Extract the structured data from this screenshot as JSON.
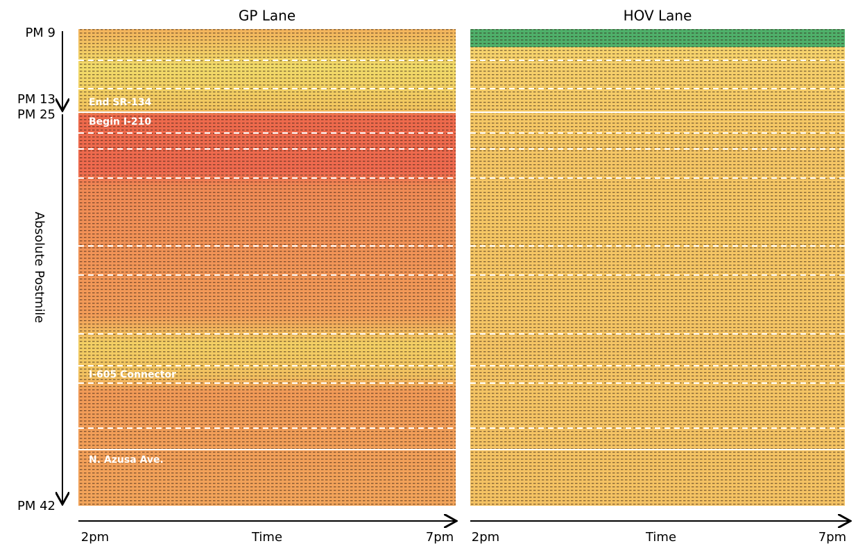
{
  "panels": [
    {
      "title": "GP Lane",
      "x_start": "2pm",
      "x_label": "Time",
      "x_end": "7pm",
      "annotations": [
        "End SR-134",
        "Begin I-210",
        "I-605 Connector",
        "N. Azusa Ave."
      ]
    },
    {
      "title": "HOV Lane",
      "x_start": "2pm",
      "x_label": "Time",
      "x_end": "7pm"
    }
  ],
  "y_axis": {
    "label": "Absolute Postmile",
    "ticks": [
      "PM 9",
      "PM 13",
      "PM 25",
      "PM 42"
    ]
  }
}
